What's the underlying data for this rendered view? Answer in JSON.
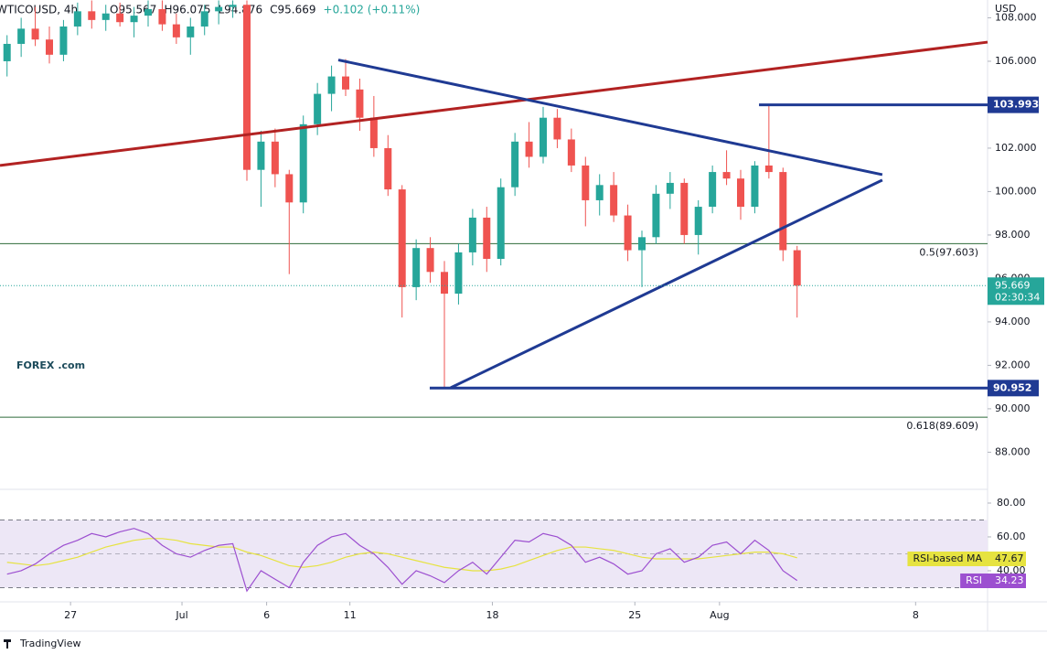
{
  "chart_data": {
    "type": "candlestick",
    "symbol": "WTICOUSD, 4h",
    "header": [
      "O95.567",
      "H96.075",
      "L94.876",
      "C95.669",
      "+0.102 (+0.11%)"
    ],
    "currency": "USD",
    "logo": {
      "main": "FOREX",
      "suffix": ".com",
      "color": "#1b4a5a"
    },
    "footer": "TradingView",
    "xlim": [
      0,
      70
    ],
    "xticks": [
      {
        "value": 5.0,
        "label": "27"
      },
      {
        "value": 12.9,
        "label": "Jul"
      },
      {
        "value": 18.9,
        "label": "6"
      },
      {
        "value": 24.8,
        "label": "11"
      },
      {
        "value": 34.9,
        "label": "18"
      },
      {
        "value": 45.0,
        "label": "25"
      },
      {
        "value": 51.0,
        "label": "Aug"
      },
      {
        "value": 64.9,
        "label": "8"
      }
    ],
    "ylim": [
      86.29,
      108.82
    ],
    "yticks": [
      {
        "value": 88,
        "label": "88.000"
      },
      {
        "value": 90,
        "label": "90.000"
      },
      {
        "value": 92,
        "label": "92.000"
      },
      {
        "value": 94,
        "label": "94.000"
      },
      {
        "value": 96,
        "label": "96.000"
      },
      {
        "value": 98,
        "label": "98.000"
      },
      {
        "value": 100,
        "label": "100.000"
      },
      {
        "value": 102,
        "label": "102.000"
      },
      {
        "value": 104,
        "label": "104.000"
      },
      {
        "value": 106,
        "label": "106.000"
      },
      {
        "value": 108,
        "label": "108.000"
      }
    ],
    "grid": false,
    "up_color": "#26a69a",
    "down_color": "#ef5350",
    "x": [
      0.5,
      1.5,
      2.5,
      3.5,
      4.5,
      5.5,
      6.5,
      7.5,
      8.5,
      9.5,
      10.5,
      11.5,
      12.5,
      13.5,
      14.5,
      15.5,
      16.5,
      17.5,
      18.5,
      19.5,
      20.5,
      21.5,
      22.5,
      23.5,
      24.5,
      25.5,
      26.5,
      27.5,
      28.5,
      29.5,
      30.5,
      31.5,
      32.5,
      33.5,
      34.5,
      35.5,
      36.5,
      37.5,
      38.5,
      39.5,
      40.5,
      41.5,
      42.5,
      43.5,
      44.5,
      45.5,
      46.5,
      47.5,
      48.5,
      49.5,
      50.5,
      51.5,
      52.5,
      53.5,
      54.5,
      55.5,
      56.5
    ],
    "open": [
      106.0,
      106.8,
      107.5,
      107.0,
      106.3,
      107.6,
      108.3,
      107.9,
      108.2,
      107.8,
      108.1,
      108.4,
      107.7,
      107.1,
      107.6,
      108.3,
      108.5,
      108.6,
      101.0,
      102.3,
      100.8,
      99.5,
      103.1,
      104.5,
      105.3,
      104.7,
      103.4,
      102.0,
      100.1,
      95.6,
      97.4,
      96.3,
      95.3,
      97.2,
      98.8,
      96.9,
      100.2,
      102.3,
      101.6,
      103.4,
      102.4,
      101.2,
      99.6,
      100.3,
      98.9,
      97.3,
      97.9,
      99.9,
      100.4,
      98.0,
      99.3,
      100.9,
      100.6,
      99.3,
      101.2,
      100.9,
      97.3
    ],
    "high": [
      107.2,
      108.0,
      108.5,
      107.6,
      107.9,
      108.7,
      108.8,
      108.6,
      108.7,
      108.5,
      108.8,
      108.8,
      108.2,
      108.0,
      108.6,
      108.8,
      108.8,
      108.8,
      102.8,
      102.9,
      101.0,
      103.5,
      105.0,
      105.8,
      106.1,
      105.2,
      104.4,
      102.6,
      100.3,
      97.8,
      97.9,
      96.8,
      97.6,
      99.2,
      99.3,
      100.6,
      102.7,
      103.2,
      103.9,
      103.8,
      102.9,
      101.6,
      100.8,
      100.9,
      99.4,
      98.2,
      100.3,
      100.9,
      100.6,
      99.6,
      101.2,
      101.9,
      101.0,
      101.4,
      104.0,
      101.1,
      97.5
    ],
    "low": [
      105.3,
      106.2,
      106.7,
      105.9,
      106.0,
      107.2,
      107.5,
      107.4,
      107.6,
      107.1,
      107.6,
      107.4,
      106.8,
      106.3,
      107.2,
      107.7,
      108.0,
      100.5,
      99.3,
      100.2,
      96.2,
      99.0,
      102.6,
      103.7,
      104.4,
      102.8,
      101.6,
      99.8,
      94.2,
      95.0,
      95.8,
      90.95,
      94.8,
      96.6,
      96.3,
      96.6,
      99.8,
      101.1,
      101.3,
      102.0,
      100.9,
      98.4,
      98.9,
      98.6,
      96.8,
      95.6,
      97.6,
      99.2,
      97.6,
      97.1,
      99.0,
      100.3,
      98.7,
      99.0,
      100.6,
      96.8,
      94.2
    ],
    "close": [
      106.8,
      107.5,
      107.0,
      106.3,
      107.6,
      108.3,
      107.9,
      108.2,
      107.8,
      108.1,
      108.4,
      107.7,
      107.1,
      107.6,
      108.3,
      108.5,
      108.6,
      101.0,
      102.3,
      100.8,
      99.5,
      103.1,
      104.5,
      105.3,
      104.7,
      103.4,
      102.0,
      100.1,
      95.6,
      97.4,
      96.3,
      95.3,
      97.2,
      98.8,
      96.9,
      100.2,
      102.3,
      101.6,
      103.4,
      102.4,
      101.2,
      99.6,
      100.3,
      98.9,
      97.3,
      97.9,
      99.9,
      100.4,
      98.0,
      99.3,
      100.9,
      100.6,
      99.3,
      101.2,
      100.9,
      97.3,
      95.669
    ],
    "trendlines": [
      {
        "color": "#b22222",
        "x": [
          0,
          70
        ],
        "y": [
          101.2,
          106.88
        ]
      },
      {
        "color": "#1f3a93",
        "x": [
          23.98,
          62.54
        ],
        "y": [
          106.06,
          100.78
        ]
      },
      {
        "color": "#1f3a93",
        "x": [
          31.95,
          62.54
        ],
        "y": [
          90.97,
          100.53
        ]
      }
    ],
    "levels": [
      {
        "value": 103.993,
        "x_start": 53.8,
        "color": "#1f3a93"
      },
      {
        "value": 90.952,
        "x_start": 30.46,
        "color": "#1f3a93"
      }
    ],
    "fib_levels": [
      {
        "value": 97.603,
        "label": "0.5(97.603)",
        "color": "#2e6b3a"
      },
      {
        "value": 89.609,
        "label": "0.618(89.609)",
        "color": "#2e6b3a"
      }
    ],
    "last": {
      "value": 95.669,
      "countdown": "02:30:34",
      "color": "#26a69a"
    },
    "rsi": {
      "ylim": [
        21.6,
        88.1
      ],
      "yticks": [
        {
          "value": 40,
          "label": "40.00"
        },
        {
          "value": 60,
          "label": "60.00"
        },
        {
          "value": 80,
          "label": "80.00"
        }
      ],
      "bands": [
        30,
        50,
        70
      ],
      "band_color": "#ede7f6",
      "series": [
        {
          "name": "RSI-based MA",
          "color": "#e6e340",
          "values": [
            45,
            44,
            43,
            44,
            46,
            48,
            51,
            54,
            56,
            58,
            59,
            59,
            58,
            56,
            55,
            54,
            54,
            51,
            49,
            46,
            43,
            42,
            43,
            45,
            48,
            50,
            51,
            50,
            48,
            46,
            44,
            42,
            41,
            40,
            40,
            41,
            43,
            46,
            49,
            52,
            54,
            54,
            53,
            52,
            50,
            48,
            47,
            47,
            47,
            47,
            48,
            49,
            50,
            51,
            51,
            50,
            47.67
          ]
        },
        {
          "name": "RSI",
          "color": "#9c4fd0",
          "values": [
            38,
            40,
            44,
            50,
            55,
            58,
            62,
            60,
            63,
            65,
            62,
            55,
            50,
            48,
            52,
            55,
            56,
            28,
            40,
            35,
            30,
            45,
            55,
            60,
            62,
            55,
            50,
            42,
            32,
            40,
            37,
            33,
            40,
            45,
            38,
            48,
            58,
            57,
            62,
            60,
            55,
            45,
            48,
            44,
            38,
            40,
            50,
            53,
            45,
            48,
            55,
            57,
            50,
            58,
            52,
            40,
            34.23
          ]
        }
      ]
    }
  }
}
